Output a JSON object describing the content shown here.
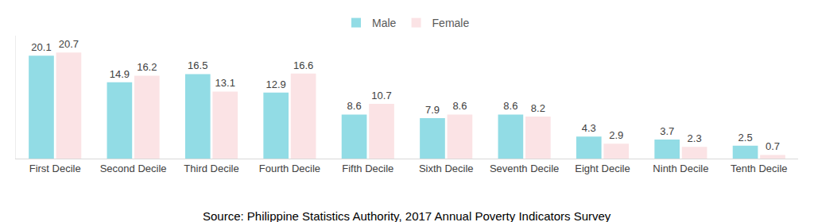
{
  "chart_data": {
    "type": "bar",
    "categories": [
      "First Decile",
      "Second Decile",
      "Third Decile",
      "Fourth Decile",
      "Fifth Decile",
      "Sixth Decile",
      "Seventh Decile",
      "Eight Decile",
      "Ninth Decile",
      "Tenth Decile"
    ],
    "series": [
      {
        "name": "Male",
        "color": "#92dce5",
        "values": [
          20.1,
          14.9,
          16.5,
          12.9,
          8.6,
          7.9,
          8.6,
          4.3,
          3.7,
          2.5
        ]
      },
      {
        "name": "Female",
        "color": "#fbe3e5",
        "values": [
          20.7,
          16.2,
          13.1,
          16.6,
          10.7,
          8.6,
          8.2,
          2.9,
          2.3,
          0.7
        ]
      }
    ],
    "ylim": [
      0,
      24
    ],
    "grid": false,
    "legend": "top",
    "data_labels": true,
    "tick_labels": "x",
    "annotations": [
      "Source: Philippine Statistics Authority, 2017 Annual Poverty Indicators Survey"
    ]
  }
}
